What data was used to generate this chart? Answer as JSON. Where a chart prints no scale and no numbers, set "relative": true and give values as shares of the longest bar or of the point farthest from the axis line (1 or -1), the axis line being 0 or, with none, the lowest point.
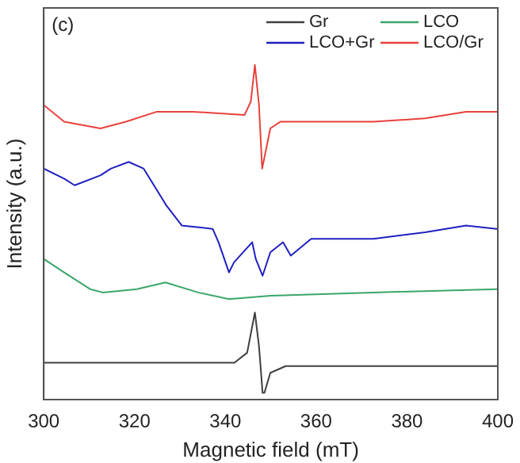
{
  "chart_data": {
    "type": "line",
    "xlabel": "Magnetic field (mT)",
    "ylabel": "Intensity (a.u.)",
    "annotations": [
      "(c)"
    ],
    "relative": true,
    "xlim": [
      300,
      400
    ],
    "xticks": [
      300,
      320,
      340,
      360,
      380,
      400
    ],
    "grid": false,
    "legend": "top right",
    "marker": "none",
    "line_style": "solid",
    "series": [
      {
        "name": "Gr",
        "color": "#404040",
        "x": [
          300,
          342,
          344.8,
          346.5,
          347.4,
          348.2,
          348.6,
          349.9,
          353.3,
          399.8
        ],
        "values": [
          0.11,
          0.11,
          0.14,
          0.26,
          0.16,
          0.02,
          0.02,
          0.08,
          0.1,
          0.1
        ]
      },
      {
        "name": "LCO",
        "color": "#3aa66a",
        "x": [
          300,
          304.5,
          310.2,
          313,
          320.5,
          326.8,
          334,
          340.8,
          350,
          372.6,
          399.8
        ],
        "values": [
          0.42,
          0.38,
          0.33,
          0.32,
          0.33,
          0.35,
          0.32,
          0.3,
          0.31,
          0.32,
          0.33
        ]
      },
      {
        "name": "LCO+Gr",
        "color": "#2020c0",
        "x": [
          300,
          304.5,
          306.8,
          312.5,
          314.8,
          318.7,
          322,
          327,
          330.4,
          337.2,
          338.5,
          340.8,
          341.9,
          345.9,
          346.7,
          348.2,
          349.9,
          352.7,
          354.4,
          358.9,
          372.6,
          384,
          393,
          399.8
        ],
        "values": [
          0.69,
          0.66,
          0.64,
          0.67,
          0.69,
          0.71,
          0.69,
          0.58,
          0.52,
          0.51,
          0.47,
          0.38,
          0.41,
          0.47,
          0.42,
          0.37,
          0.44,
          0.47,
          0.43,
          0.48,
          0.48,
          0.5,
          0.52,
          0.51
        ]
      },
      {
        "name": "LCO/Gr",
        "color": "#e8413c",
        "x": [
          300,
          304.5,
          312.5,
          318.1,
          324.9,
          332.9,
          344.2,
          345.6,
          346.5,
          347.4,
          348.1,
          349.9,
          352.1,
          361.2,
          372.6,
          384,
          393,
          399.8
        ],
        "values": [
          0.88,
          0.83,
          0.81,
          0.83,
          0.86,
          0.86,
          0.85,
          0.89,
          1,
          0.88,
          0.69,
          0.81,
          0.83,
          0.83,
          0.83,
          0.84,
          0.86,
          0.86
        ]
      }
    ]
  }
}
